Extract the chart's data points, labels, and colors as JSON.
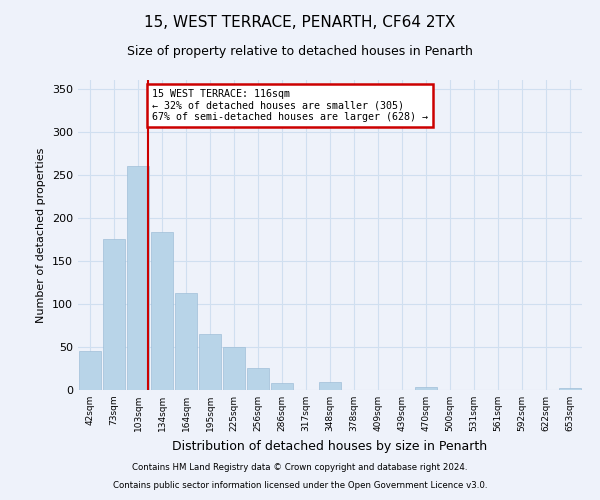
{
  "title": "15, WEST TERRACE, PENARTH, CF64 2TX",
  "subtitle": "Size of property relative to detached houses in Penarth",
  "xlabel": "Distribution of detached houses by size in Penarth",
  "ylabel": "Number of detached properties",
  "footnote1": "Contains HM Land Registry data © Crown copyright and database right 2024.",
  "footnote2": "Contains public sector information licensed under the Open Government Licence v3.0.",
  "bin_labels": [
    "42sqm",
    "73sqm",
    "103sqm",
    "134sqm",
    "164sqm",
    "195sqm",
    "225sqm",
    "256sqm",
    "286sqm",
    "317sqm",
    "348sqm",
    "378sqm",
    "409sqm",
    "439sqm",
    "470sqm",
    "500sqm",
    "531sqm",
    "561sqm",
    "592sqm",
    "622sqm",
    "653sqm"
  ],
  "bar_values": [
    45,
    175,
    260,
    183,
    113,
    65,
    50,
    25,
    8,
    0,
    9,
    0,
    0,
    0,
    3,
    0,
    0,
    0,
    0,
    0,
    2
  ],
  "bar_color": "#b8d4e8",
  "bar_edge_color": "#a0bfd8",
  "grid_color": "#d0dff0",
  "vline_color": "#cc0000",
  "annotation_text": "15 WEST TERRACE: 116sqm\n← 32% of detached houses are smaller (305)\n67% of semi-detached houses are larger (628) →",
  "annotation_box_color": "#ffffff",
  "annotation_box_edge": "#cc0000",
  "ylim": [
    0,
    360
  ],
  "yticks": [
    0,
    50,
    100,
    150,
    200,
    250,
    300,
    350
  ],
  "background_color": "#eef2fa",
  "plot_bg_color": "#eef2fa"
}
